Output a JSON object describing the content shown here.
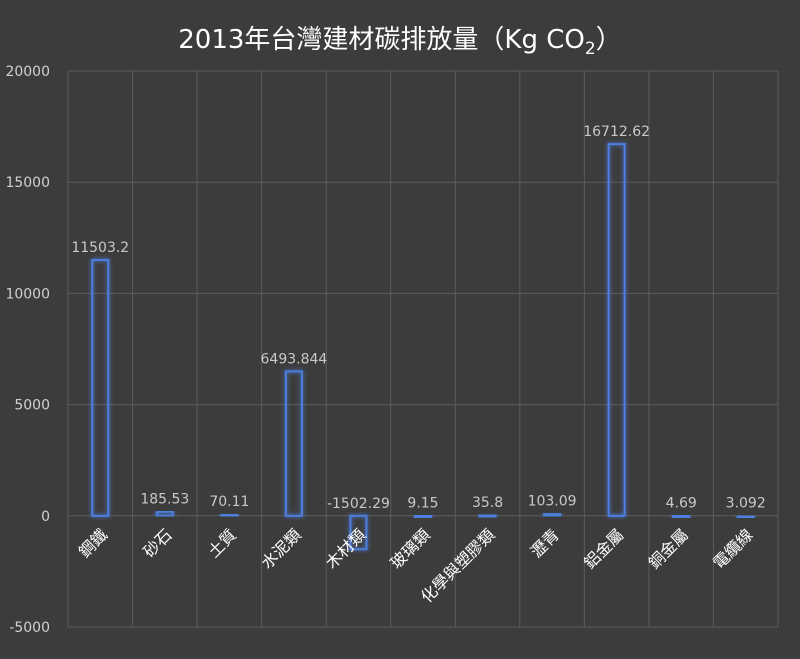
{
  "chart_data": {
    "type": "bar",
    "title": "2013年台灣建材碳排放量（Kg CO",
    "title_subscript": "2",
    "title_close": "）",
    "categories": [
      "鋼鐵",
      "砂石",
      "土質",
      "水泥類",
      "木材類",
      "玻璃類",
      "化學與塑膠類",
      "瀝青",
      "鋁金屬",
      "銅金屬",
      "電纜線"
    ],
    "values": [
      11503.2,
      185.53,
      70.11,
      6493.844,
      -1502.29,
      9.15,
      35.8,
      103.09,
      16712.62,
      4.69,
      3.092
    ],
    "value_labels": [
      "11503.2",
      "185.53",
      "70.11",
      "6493.844",
      "-1502.29",
      "9.15",
      "35.8",
      "103.09",
      "16712.62",
      "4.69",
      "3.092"
    ],
    "ylim": [
      -5000,
      20000
    ],
    "yticks": [
      20000,
      15000,
      10000,
      5000,
      0,
      -5000
    ],
    "grid": true,
    "colors": {
      "background": "#3c3c3c",
      "bar": "#4d7fe0",
      "grid": "#5c5c5c"
    }
  }
}
